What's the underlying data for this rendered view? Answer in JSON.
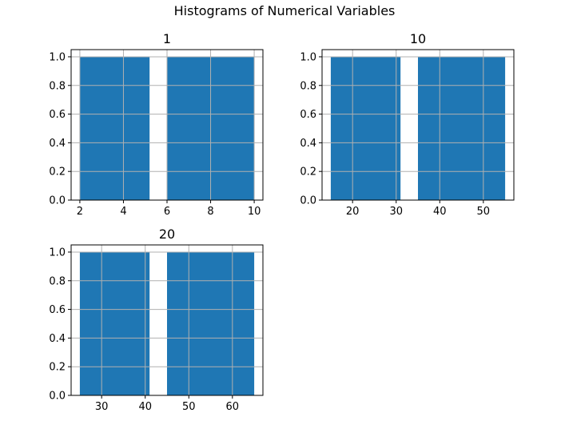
{
  "figure": {
    "title": "Histograms of Numerical Variables"
  },
  "chart_data": [
    {
      "type": "bar",
      "title": "1",
      "bins": [
        [
          2,
          5.2
        ],
        [
          6,
          10
        ]
      ],
      "values": [
        1.0,
        1.0
      ],
      "xlim": [
        1.6,
        10.4
      ],
      "ylim": [
        0,
        1.05
      ],
      "xticks": [
        2,
        4,
        6,
        8,
        10
      ],
      "yticks": [
        0.0,
        0.2,
        0.4,
        0.6,
        0.8,
        1.0
      ],
      "grid": true,
      "color": "#1f77b4"
    },
    {
      "type": "bar",
      "title": "10",
      "bins": [
        [
          15,
          31
        ],
        [
          35,
          55
        ]
      ],
      "values": [
        1.0,
        1.0
      ],
      "xlim": [
        13,
        57
      ],
      "ylim": [
        0,
        1.05
      ],
      "xticks": [
        20,
        30,
        40,
        50
      ],
      "yticks": [
        0.0,
        0.2,
        0.4,
        0.6,
        0.8,
        1.0
      ],
      "grid": true,
      "color": "#1f77b4"
    },
    {
      "type": "bar",
      "title": "20",
      "bins": [
        [
          25,
          41
        ],
        [
          45,
          65
        ]
      ],
      "values": [
        1.0,
        1.0
      ],
      "xlim": [
        23,
        67
      ],
      "ylim": [
        0,
        1.05
      ],
      "xticks": [
        30,
        40,
        50,
        60
      ],
      "yticks": [
        0.0,
        0.2,
        0.4,
        0.6,
        0.8,
        1.0
      ],
      "grid": true,
      "color": "#1f77b4"
    }
  ]
}
